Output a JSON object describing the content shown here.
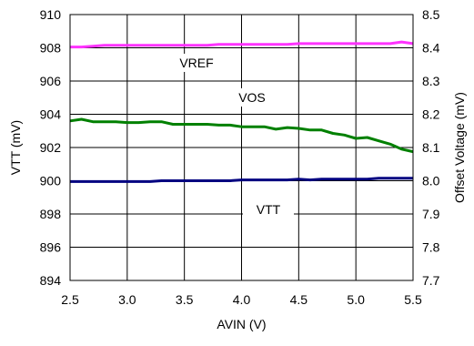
{
  "chart_data": {
    "type": "line",
    "xlabel": "AVIN (V)",
    "ylabel_left": "VTT (mV)",
    "ylabel_right": "Offset Voltage (mV)",
    "xlim": [
      2.5,
      5.5
    ],
    "ylim_left": [
      894,
      910
    ],
    "ylim_right": [
      7.7,
      8.5
    ],
    "grid": true,
    "x_ticks": [
      "2.5",
      "3.0",
      "3.5",
      "4.0",
      "4.5",
      "5.0",
      "5.5"
    ],
    "y_left_ticks": [
      "894",
      "896",
      "898",
      "900",
      "902",
      "904",
      "906",
      "908",
      "910"
    ],
    "y_right_ticks": [
      "7.7",
      "7.8",
      "7.9",
      "8.0",
      "8.1",
      "8.2",
      "8.3",
      "8.4",
      "8.5"
    ],
    "series": [
      {
        "name": "VREF",
        "axis": "left",
        "color": "#ff33ff",
        "x": [
          2.5,
          2.6,
          2.7,
          2.8,
          2.9,
          3.0,
          3.1,
          3.2,
          3.3,
          3.4,
          3.5,
          3.6,
          3.7,
          3.8,
          3.9,
          4.0,
          4.1,
          4.2,
          4.3,
          4.4,
          4.5,
          4.6,
          4.7,
          4.8,
          4.9,
          5.0,
          5.1,
          5.2,
          5.3,
          5.4,
          5.5
        ],
        "y": [
          908.05,
          908.05,
          908.1,
          908.15,
          908.15,
          908.15,
          908.15,
          908.15,
          908.15,
          908.15,
          908.15,
          908.15,
          908.15,
          908.2,
          908.2,
          908.2,
          908.2,
          908.2,
          908.2,
          908.2,
          908.25,
          908.25,
          908.25,
          908.25,
          908.25,
          908.25,
          908.25,
          908.25,
          908.25,
          908.35,
          908.25
        ]
      },
      {
        "name": "VOS",
        "axis": "left",
        "color": "#008000",
        "x": [
          2.5,
          2.6,
          2.7,
          2.8,
          2.9,
          3.0,
          3.1,
          3.2,
          3.3,
          3.4,
          3.5,
          3.6,
          3.7,
          3.8,
          3.9,
          4.0,
          4.1,
          4.2,
          4.3,
          4.4,
          4.5,
          4.6,
          4.7,
          4.8,
          4.9,
          5.0,
          5.1,
          5.2,
          5.3,
          5.4,
          5.5
        ],
        "y": [
          903.6,
          903.7,
          903.55,
          903.55,
          903.55,
          903.5,
          903.5,
          903.55,
          903.55,
          903.4,
          903.4,
          903.4,
          903.4,
          903.35,
          903.35,
          903.25,
          903.25,
          903.25,
          903.1,
          903.2,
          903.15,
          903.05,
          903.05,
          902.85,
          902.75,
          902.55,
          902.6,
          902.4,
          902.2,
          901.9,
          901.75
        ]
      },
      {
        "name": "VTT",
        "axis": "left",
        "color": "#000080",
        "x": [
          2.5,
          2.6,
          2.7,
          2.8,
          2.9,
          3.0,
          3.1,
          3.2,
          3.3,
          3.4,
          3.5,
          3.6,
          3.7,
          3.8,
          3.9,
          4.0,
          4.1,
          4.2,
          4.3,
          4.4,
          4.5,
          4.6,
          4.7,
          4.8,
          4.9,
          5.0,
          5.1,
          5.2,
          5.3,
          5.4,
          5.5
        ],
        "y": [
          899.95,
          899.95,
          899.95,
          899.95,
          899.95,
          899.95,
          899.95,
          899.95,
          900.0,
          900.0,
          900.0,
          900.0,
          900.0,
          900.0,
          900.0,
          900.05,
          900.05,
          900.05,
          900.05,
          900.05,
          900.1,
          900.05,
          900.1,
          900.1,
          900.1,
          900.1,
          900.1,
          900.15,
          900.15,
          900.15,
          900.15
        ]
      }
    ]
  }
}
